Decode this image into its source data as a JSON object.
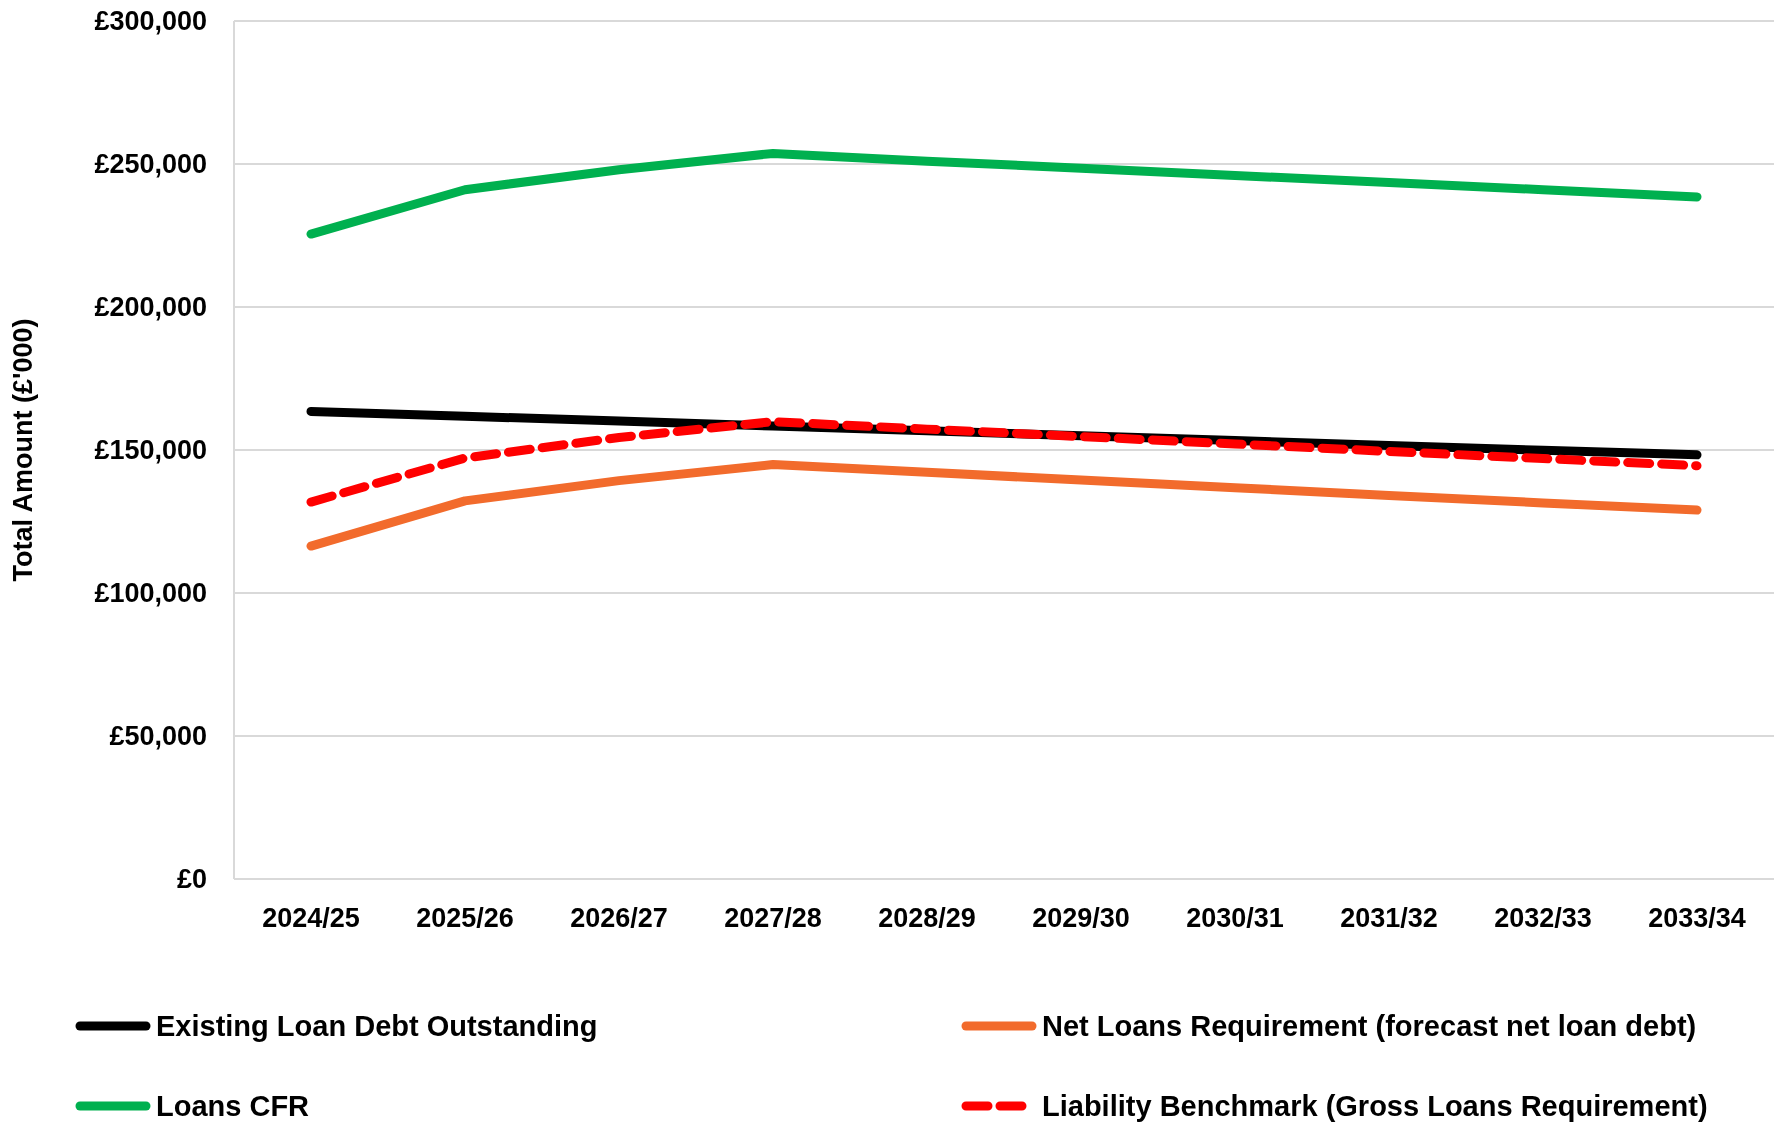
{
  "chart_data": {
    "type": "line",
    "ylabel": "Total Amount (£'000)",
    "categories": [
      "2024/25",
      "2025/26",
      "2026/27",
      "2027/28",
      "2028/29",
      "2029/30",
      "2030/31",
      "2031/32",
      "2032/33",
      "2033/34"
    ],
    "series": [
      {
        "name": "Existing Loan Debt Outstanding",
        "color": "#000000",
        "values": [
          163500,
          161800,
          160100,
          158400,
          156700,
          155000,
          153300,
          151600,
          149900,
          148300
        ]
      },
      {
        "name": "Net Loans Requirement (forecast net loan debt)",
        "color": "#f26b2c",
        "values": [
          116400,
          132200,
          139300,
          144900,
          142200,
          139500,
          136800,
          134100,
          131500,
          129000
        ]
      },
      {
        "name": "Loans CFR",
        "color": "#00b04f",
        "values": [
          225500,
          241000,
          248000,
          253700,
          251000,
          248500,
          246000,
          243500,
          241000,
          238500
        ]
      },
      {
        "name": "Liability Benchmark (Gross Loans Requirement)",
        "color": "#ff0000",
        "line_style": "dashed",
        "values": [
          131800,
          147200,
          154400,
          159900,
          157300,
          154700,
          152100,
          149500,
          147000,
          144500
        ]
      }
    ],
    "ylim": [
      0,
      300000
    ],
    "yticks": [
      {
        "value": 0,
        "label": "£0"
      },
      {
        "value": 50000,
        "label": "£50,000"
      },
      {
        "value": 100000,
        "label": "£100,000"
      },
      {
        "value": 150000,
        "label": "£150,000"
      },
      {
        "value": 200000,
        "label": "£200,000"
      },
      {
        "value": 250000,
        "label": "£250,000"
      },
      {
        "value": 300000,
        "label": "£300,000"
      }
    ],
    "grid": "y",
    "legend": "bottom",
    "marker": "none",
    "line_style": "solid"
  }
}
